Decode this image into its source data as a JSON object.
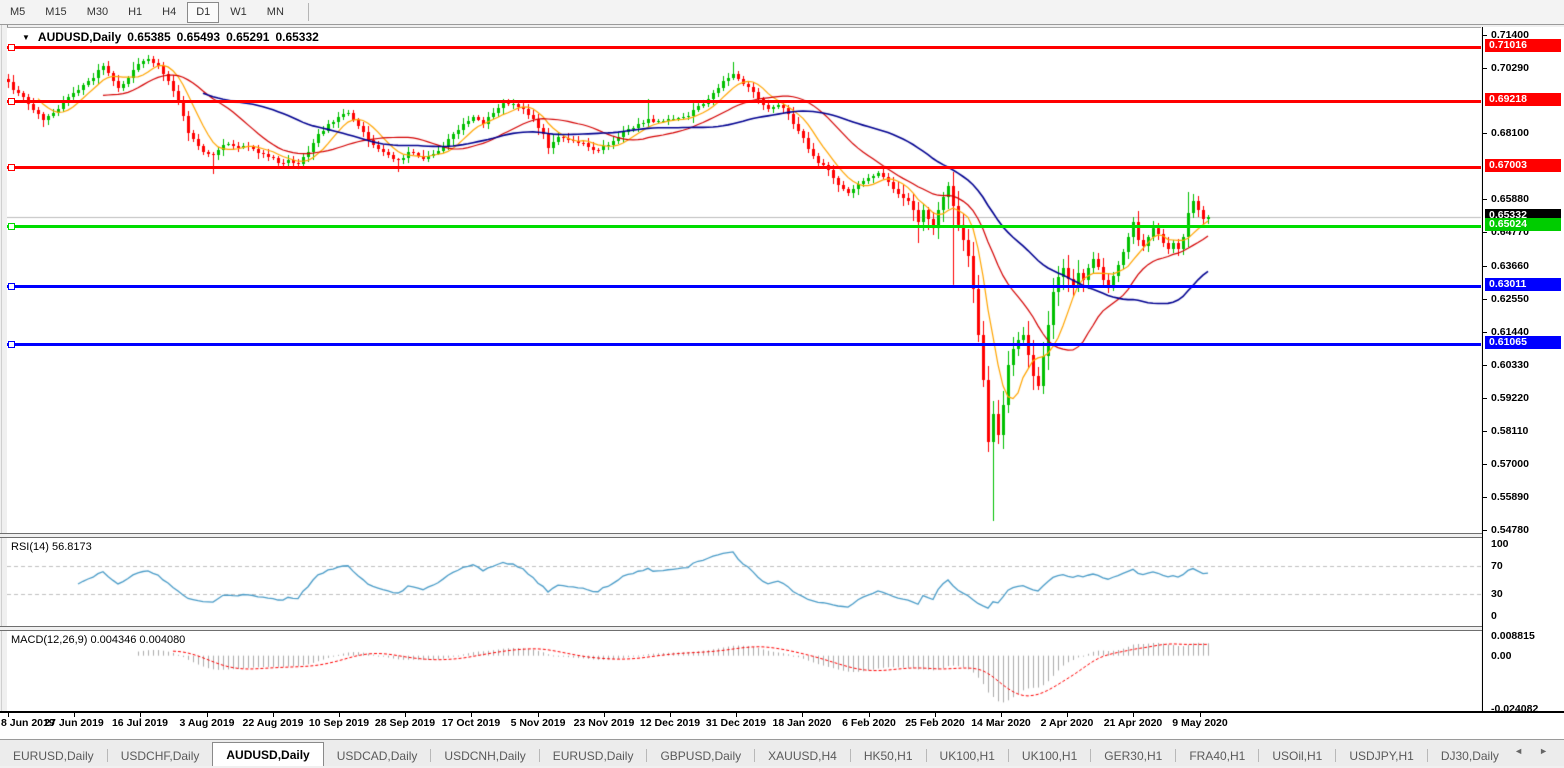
{
  "toolbar": {
    "timeframes": [
      "M5",
      "M15",
      "M30",
      "H1",
      "H4",
      "D1",
      "W1",
      "MN"
    ],
    "selected": "D1"
  },
  "header": {
    "title": "AUDUSD,Daily",
    "ohlc": [
      "0.65385",
      "0.65493",
      "0.65291",
      "0.65332"
    ]
  },
  "rsi": {
    "label": "RSI(14)",
    "value": "56.8173",
    "axis": [
      {
        "label": "100",
        "v": 100
      },
      {
        "label": "70",
        "v": 70
      },
      {
        "label": "30",
        "v": 30
      },
      {
        "label": "0",
        "v": 0
      }
    ],
    "dashed_levels": [
      70,
      30
    ],
    "line_color": "#4a9cc8"
  },
  "macd": {
    "label": "MACD(12,26,9)",
    "values": "0.004346 0.004080",
    "axis": [
      {
        "label": "0.008815",
        "v": 0.008815
      },
      {
        "label": "0.00",
        "v": 0
      },
      {
        "label": "-0.024082",
        "v": -0.024082
      }
    ],
    "bar_color": "#ababab",
    "signal_color": "#ff0000"
  },
  "tabs": {
    "active_index": 2,
    "items": [
      "EURUSD,Daily",
      "USDCHF,Daily",
      "AUDUSD,Daily",
      "USDCAD,Daily",
      "USDCNH,Daily",
      "EURUSD,Daily",
      "GBPUSD,Daily",
      "XAUUSD,H4",
      "HK50,H1",
      "UK100,H1",
      "UK100,H1",
      "GER30,H1",
      "FRA40,H1",
      "USOil,H1",
      "USDJPY,H1",
      "DJ30,Daily"
    ],
    "scroll_left": "◄",
    "scroll_right": "►"
  },
  "chart_data": {
    "type": "candlestick",
    "symbol": "AUDUSD",
    "timeframe": "Daily",
    "current": {
      "open": "0.65385",
      "high": "0.65493",
      "low": "0.65291",
      "close": "0.65332"
    },
    "y_axis": {
      "min": 0.5478,
      "max": 0.714,
      "ticks": [
        "0.71400",
        "0.70290",
        "0.68100",
        "0.65880",
        "0.64770",
        "0.63660",
        "0.62550",
        "0.61440",
        "0.60330",
        "0.59220",
        "0.58110",
        "0.57000",
        "0.55890",
        "0.54780"
      ]
    },
    "x_axis_labels": [
      "8 Jun 2019",
      "27 Jun 2019",
      "16 Jul 2019",
      "3 Aug 2019",
      "22 Aug 2019",
      "10 Sep 2019",
      "28 Sep 2019",
      "17 Oct 2019",
      "5 Nov 2019",
      "23 Nov 2019",
      "12 Dec 2019",
      "31 Dec 2019",
      "18 Jan 2020",
      "6 Feb 2020",
      "25 Feb 2020",
      "14 Mar 2020",
      "2 Apr 2020",
      "21 Apr 2020",
      "9 May 2020"
    ],
    "horizontal_lines": [
      {
        "price": 0.71016,
        "label": "0.71016",
        "color": "#ff0000",
        "width": 3,
        "handle": true,
        "badge_bg": "#ff0000",
        "badge_fg": "#ffffff"
      },
      {
        "price": 0.69218,
        "label": "0.69218",
        "color": "#ff0000",
        "width": 3,
        "handle": true,
        "badge_bg": "#ff0000",
        "badge_fg": "#ffffff"
      },
      {
        "price": 0.67003,
        "label": "0.67003",
        "color": "#ff0000",
        "width": 3,
        "handle": true,
        "badge_bg": "#ff0000",
        "badge_fg": "#ffffff"
      },
      {
        "price": 0.65332,
        "label": "0.65332",
        "color": "#bdbdbd",
        "width": 1,
        "handle": false,
        "badge_bg": "#000000",
        "badge_fg": "#ffffff"
      },
      {
        "price": 0.65024,
        "label": "0.65024",
        "color": "#00dd00",
        "width": 3,
        "handle": true,
        "badge_bg": "#00cc00",
        "badge_fg": "#ffffff"
      },
      {
        "price": 0.63011,
        "label": "0.63011",
        "color": "#0000ff",
        "width": 3,
        "handle": true,
        "badge_bg": "#0000ff",
        "badge_fg": "#ffffff"
      },
      {
        "price": 0.61065,
        "label": "0.61065",
        "color": "#0000ff",
        "width": 3,
        "handle": true,
        "badge_bg": "#0000ff",
        "badge_fg": "#ffffff"
      }
    ],
    "candles": {
      "count": 241,
      "up_color": "#00c000",
      "down_color": "#ff0000",
      "close_anchors": [
        [
          0,
          0.6985
        ],
        [
          1,
          0.696
        ],
        [
          3,
          0.6935
        ],
        [
          5,
          0.689
        ],
        [
          7,
          0.6858
        ],
        [
          9,
          0.688
        ],
        [
          11,
          0.692
        ],
        [
          13,
          0.695
        ],
        [
          15,
          0.6975
        ],
        [
          17,
          0.7
        ],
        [
          19,
          0.704
        ],
        [
          21,
          0.699
        ],
        [
          22,
          0.6965
        ],
        [
          24,
          0.7
        ],
        [
          26,
          0.7045
        ],
        [
          28,
          0.7062
        ],
        [
          30,
          0.704
        ],
        [
          32,
          0.699
        ],
        [
          34,
          0.692
        ],
        [
          36,
          0.6815
        ],
        [
          38,
          0.677
        ],
        [
          40,
          0.6745
        ],
        [
          41,
          0.674
        ],
        [
          43,
          0.6775
        ],
        [
          45,
          0.677
        ],
        [
          47,
          0.6772
        ],
        [
          49,
          0.6762
        ],
        [
          51,
          0.6745
        ],
        [
          53,
          0.673
        ],
        [
          54,
          0.6715
        ],
        [
          56,
          0.6722
        ],
        [
          58,
          0.671
        ],
        [
          60,
          0.675
        ],
        [
          62,
          0.681
        ],
        [
          64,
          0.6845
        ],
        [
          66,
          0.6868
        ],
        [
          68,
          0.688
        ],
        [
          70,
          0.6838
        ],
        [
          72,
          0.679
        ],
        [
          74,
          0.6762
        ],
        [
          76,
          0.674
        ],
        [
          78,
          0.6722
        ],
        [
          80,
          0.6752
        ],
        [
          82,
          0.6738
        ],
        [
          83,
          0.6727
        ],
        [
          85,
          0.6745
        ],
        [
          87,
          0.6772
        ],
        [
          89,
          0.681
        ],
        [
          91,
          0.6845
        ],
        [
          93,
          0.6868
        ],
        [
          95,
          0.6845
        ],
        [
          97,
          0.688
        ],
        [
          99,
          0.6916
        ],
        [
          101,
          0.6912
        ],
        [
          103,
          0.6895
        ],
        [
          105,
          0.686
        ],
        [
          107,
          0.681
        ],
        [
          108,
          0.6765
        ],
        [
          110,
          0.68
        ],
        [
          112,
          0.679
        ],
        [
          114,
          0.6782
        ],
        [
          116,
          0.6768
        ],
        [
          118,
          0.6756
        ],
        [
          120,
          0.6775
        ],
        [
          122,
          0.68
        ],
        [
          124,
          0.6828
        ],
        [
          126,
          0.6845
        ],
        [
          128,
          0.6862
        ],
        [
          130,
          0.6855
        ],
        [
          132,
          0.686
        ],
        [
          134,
          0.6865
        ],
        [
          136,
          0.687
        ],
        [
          138,
          0.6905
        ],
        [
          140,
          0.6928
        ],
        [
          142,
          0.6965
        ],
        [
          144,
          0.7
        ],
        [
          145,
          0.7014
        ],
        [
          146,
          0.6995
        ],
        [
          148,
          0.697
        ],
        [
          150,
          0.693
        ],
        [
          152,
          0.6895
        ],
        [
          154,
          0.6908
        ],
        [
          156,
          0.6878
        ],
        [
          158,
          0.682
        ],
        [
          160,
          0.676
        ],
        [
          162,
          0.6715
        ],
        [
          164,
          0.669
        ],
        [
          166,
          0.664
        ],
        [
          168,
          0.6613
        ],
        [
          170,
          0.6642
        ],
        [
          172,
          0.6662
        ],
        [
          174,
          0.668
        ],
        [
          176,
          0.665
        ],
        [
          178,
          0.661
        ],
        [
          180,
          0.6585
        ],
        [
          182,
          0.6515
        ],
        [
          183,
          0.6555
        ],
        [
          184,
          0.6525
        ],
        [
          185,
          0.6495
        ],
        [
          186,
          0.6555
        ],
        [
          187,
          0.66
        ],
        [
          188,
          0.6635
        ],
        [
          189,
          0.657
        ],
        [
          190,
          0.6505
        ],
        [
          191,
          0.6455
        ],
        [
          192,
          0.64
        ],
        [
          193,
          0.629
        ],
        [
          194,
          0.6135
        ],
        [
          195,
          0.5985
        ],
        [
          196,
          0.5777
        ],
        [
          197,
          0.5871
        ],
        [
          198,
          0.58
        ],
        [
          199,
          0.59
        ],
        [
          200,
          0.6035
        ],
        [
          201,
          0.609
        ],
        [
          202,
          0.612
        ],
        [
          203,
          0.6135
        ],
        [
          204,
          0.607
        ],
        [
          205,
          0.6
        ],
        [
          206,
          0.5965
        ],
        [
          207,
          0.6065
        ],
        [
          208,
          0.617
        ],
        [
          209,
          0.628
        ],
        [
          210,
          0.633
        ],
        [
          211,
          0.636
        ],
        [
          212,
          0.6325
        ],
        [
          213,
          0.63
        ],
        [
          214,
          0.6345
        ],
        [
          215,
          0.632
        ],
        [
          216,
          0.636
        ],
        [
          217,
          0.639
        ],
        [
          218,
          0.6365
        ],
        [
          219,
          0.632
        ],
        [
          220,
          0.6295
        ],
        [
          221,
          0.6335
        ],
        [
          222,
          0.637
        ],
        [
          223,
          0.6415
        ],
        [
          224,
          0.6465
        ],
        [
          225,
          0.6515
        ],
        [
          226,
          0.6455
        ],
        [
          227,
          0.6435
        ],
        [
          228,
          0.6465
        ],
        [
          229,
          0.6495
        ],
        [
          230,
          0.6475
        ],
        [
          231,
          0.6445
        ],
        [
          232,
          0.6425
        ],
        [
          233,
          0.6445
        ],
        [
          234,
          0.6425
        ],
        [
          235,
          0.6465
        ],
        [
          236,
          0.6545
        ],
        [
          237,
          0.6585
        ],
        [
          238,
          0.6555
        ],
        [
          239,
          0.6525
        ],
        [
          240,
          0.65332
        ]
      ],
      "wick_overrides": {
        "28": {
          "high": 0.7075
        },
        "41": {
          "low": 0.6677
        },
        "58": {
          "low": 0.6692
        },
        "78": {
          "low": 0.6685
        },
        "99": {
          "high": 0.693
        },
        "128": {
          "high": 0.6929
        },
        "145": {
          "high": 0.7052
        },
        "182": {
          "low": 0.6445
        },
        "189": {
          "low": 0.6305
        },
        "197": {
          "low": 0.551
        },
        "236": {
          "high": 0.6616
        }
      }
    },
    "moving_averages": [
      {
        "name": "fast",
        "period": 7,
        "color": "#ffa500",
        "width": 1.2
      },
      {
        "name": "medium",
        "period": 20,
        "color": "#d40000",
        "width": 1.2
      },
      {
        "name": "slow",
        "period": 40,
        "color": "#000090",
        "width": 1.6
      }
    ]
  }
}
